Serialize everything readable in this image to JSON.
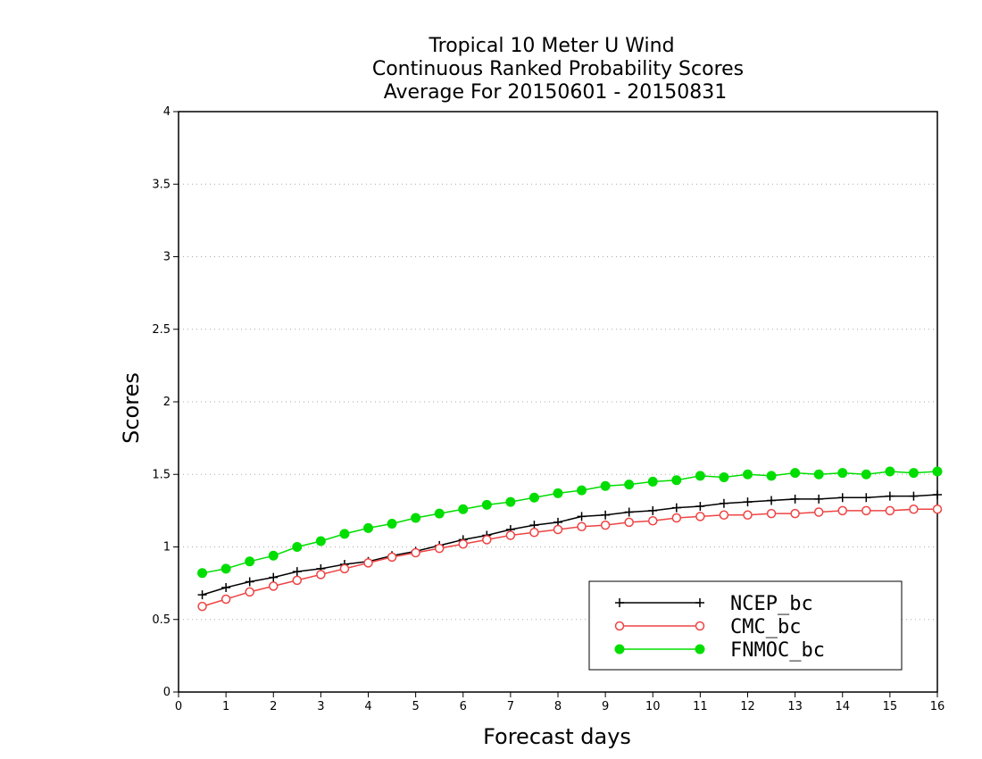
{
  "chart_data": {
    "type": "line",
    "title": [
      "Tropical 10 Meter U Wind",
      "Continuous Ranked Probability Scores",
      "Average For 20150601 - 20150831"
    ],
    "xlabel": "Forecast days",
    "ylabel": "Scores",
    "xlim": [
      0,
      16
    ],
    "ylim": [
      0,
      4
    ],
    "xticks": [
      0,
      1,
      2,
      3,
      4,
      5,
      6,
      7,
      8,
      9,
      10,
      11,
      12,
      13,
      14,
      15,
      16
    ],
    "yticks": [
      0,
      0.5,
      1,
      1.5,
      2,
      2.5,
      3,
      3.5,
      4
    ],
    "ytick_labels": [
      "0",
      "0.5",
      "1",
      "1.5",
      "2",
      "2.5",
      "3",
      "3.5",
      "4"
    ],
    "grid": "horizontal dotted",
    "legend_position": "bottom-right",
    "x": [
      0.5,
      1,
      1.5,
      2,
      2.5,
      3,
      3.5,
      4,
      4.5,
      5,
      5.5,
      6,
      6.5,
      7,
      7.5,
      8,
      8.5,
      9,
      9.5,
      10,
      10.5,
      11,
      11.5,
      12,
      12.5,
      13,
      13.5,
      14,
      14.5,
      15,
      15.5,
      16
    ],
    "series": [
      {
        "name": "NCEP_bc",
        "color": "#000000",
        "marker": "plus",
        "values": [
          0.67,
          0.72,
          0.76,
          0.79,
          0.83,
          0.85,
          0.88,
          0.9,
          0.94,
          0.97,
          1.01,
          1.05,
          1.08,
          1.12,
          1.15,
          1.17,
          1.21,
          1.22,
          1.24,
          1.25,
          1.27,
          1.28,
          1.3,
          1.31,
          1.32,
          1.33,
          1.33,
          1.34,
          1.34,
          1.35,
          1.35,
          1.36
        ]
      },
      {
        "name": "CMC_bc",
        "color": "#ee4444",
        "marker": "open-circle",
        "values": [
          0.59,
          0.64,
          0.69,
          0.73,
          0.77,
          0.81,
          0.85,
          0.89,
          0.93,
          0.96,
          0.99,
          1.02,
          1.05,
          1.08,
          1.1,
          1.12,
          1.14,
          1.15,
          1.17,
          1.18,
          1.2,
          1.21,
          1.22,
          1.22,
          1.23,
          1.23,
          1.24,
          1.25,
          1.25,
          1.25,
          1.26,
          1.26
        ]
      },
      {
        "name": "FNMOC_bc",
        "color": "#00dd00",
        "marker": "filled-circle",
        "values": [
          0.82,
          0.85,
          0.9,
          0.94,
          1.0,
          1.04,
          1.09,
          1.13,
          1.16,
          1.2,
          1.23,
          1.26,
          1.29,
          1.31,
          1.34,
          1.37,
          1.39,
          1.42,
          1.43,
          1.45,
          1.46,
          1.49,
          1.48,
          1.5,
          1.49,
          1.51,
          1.5,
          1.51,
          1.5,
          1.52,
          1.51,
          1.52
        ]
      }
    ]
  }
}
